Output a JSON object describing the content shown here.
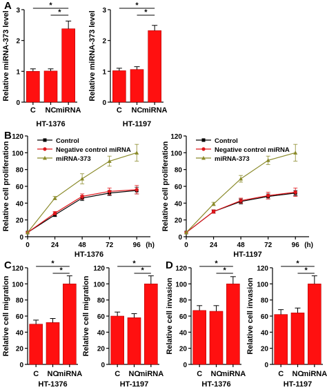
{
  "panel_letters": [
    "A",
    "B",
    "C",
    "D"
  ],
  "colors": {
    "bar": "#ff1010",
    "control": "#000000",
    "nc": "#e0161b",
    "mir": "#8a8a2a",
    "axis": "#000000"
  },
  "chart_data": [
    {
      "id": "A1",
      "type": "bar",
      "panel": "A",
      "categories": [
        "C",
        "NC",
        "miRNA"
      ],
      "values": [
        1.0,
        1.01,
        2.38
      ],
      "errors": [
        0.08,
        0.07,
        0.25
      ],
      "ylabel": "Relative miRNA-373 level",
      "xlabel": "HT-1376",
      "ylim": [
        0,
        3
      ],
      "yticks": [
        0,
        1,
        2,
        3
      ],
      "significance": [
        {
          "from": 0,
          "to": 2,
          "label": "*"
        },
        {
          "from": 1,
          "to": 2,
          "label": "*"
        }
      ]
    },
    {
      "id": "A2",
      "type": "bar",
      "panel": "A",
      "categories": [
        "C",
        "NC",
        "miRNA"
      ],
      "values": [
        1.02,
        1.06,
        2.32
      ],
      "errors": [
        0.08,
        0.09,
        0.17
      ],
      "ylabel": "Relative miRNA-373 level",
      "xlabel": "HT-1197",
      "ylim": [
        0,
        3
      ],
      "yticks": [
        0,
        1,
        2,
        3
      ],
      "significance": [
        {
          "from": 0,
          "to": 2,
          "label": "*"
        },
        {
          "from": 1,
          "to": 2,
          "label": "*"
        }
      ]
    },
    {
      "id": "B1",
      "type": "line",
      "panel": "B",
      "x": [
        0,
        24,
        48,
        72,
        96
      ],
      "xticks": [
        "0",
        "24",
        "48",
        "72",
        "96"
      ],
      "xunit": "(h)",
      "series": [
        {
          "name": "Control",
          "values": [
            5,
            26,
            46,
            52,
            55
          ],
          "errors": [
            0,
            2,
            3,
            3,
            4
          ]
        },
        {
          "name": "Negative control miRNA",
          "values": [
            5,
            28,
            48,
            54,
            56
          ],
          "errors": [
            0,
            2,
            3,
            4,
            5
          ]
        },
        {
          "name": "miRNA-373",
          "values": [
            5,
            46,
            69,
            90,
            100
          ],
          "errors": [
            0,
            2,
            6,
            6,
            10
          ]
        }
      ],
      "ylabel": "Relative cell proliferation",
      "xlabel": "HT-1376",
      "ylim": [
        0,
        120
      ],
      "yticks": [
        0,
        20,
        40,
        60,
        80,
        100,
        120
      ],
      "xlim": [
        0,
        108
      ],
      "legend": "top-left"
    },
    {
      "id": "B2",
      "type": "line",
      "panel": "B",
      "x": [
        0,
        24,
        48,
        72,
        96
      ],
      "xticks": [
        "0",
        "24",
        "48",
        "72",
        "96"
      ],
      "xunit": "(h)",
      "series": [
        {
          "name": "Control",
          "values": [
            5,
            30,
            42,
            48,
            52
          ],
          "errors": [
            0,
            2,
            3,
            3,
            3
          ]
        },
        {
          "name": "Negative control miRNA",
          "values": [
            5,
            30,
            43,
            49,
            53
          ],
          "errors": [
            0,
            2,
            3,
            4,
            5
          ]
        },
        {
          "name": "miRNA-373",
          "values": [
            5,
            39,
            69,
            91,
            100
          ],
          "errors": [
            0,
            2,
            4,
            5,
            10
          ]
        }
      ],
      "ylabel": "Relative cell proliferation",
      "xlabel": "HT-1197",
      "ylim": [
        0,
        120
      ],
      "yticks": [
        0,
        20,
        40,
        60,
        80,
        100,
        120
      ],
      "xlim": [
        0,
        108
      ],
      "legend": "top-left"
    },
    {
      "id": "C1",
      "type": "bar",
      "panel": "C",
      "categories": [
        "C",
        "NC",
        "miRNA"
      ],
      "values": [
        50,
        52,
        100
      ],
      "errors": [
        5,
        5,
        10
      ],
      "ylabel": "Relative cell migration",
      "xlabel": "HT-1376",
      "ylim": [
        0,
        120
      ],
      "yticks": [
        0,
        20,
        40,
        60,
        80,
        100,
        120
      ],
      "significance": [
        {
          "from": 0,
          "to": 2,
          "label": "*"
        },
        {
          "from": 1,
          "to": 2,
          "label": "*"
        }
      ]
    },
    {
      "id": "C2",
      "type": "bar",
      "panel": "C",
      "categories": [
        "C",
        "NC",
        "miRNA"
      ],
      "values": [
        60,
        58,
        100
      ],
      "errors": [
        5,
        5,
        10
      ],
      "ylabel": "Relative cell migration",
      "xlabel": "HT-1197",
      "ylim": [
        0,
        120
      ],
      "yticks": [
        0,
        20,
        40,
        60,
        80,
        100,
        120
      ],
      "significance": [
        {
          "from": 0,
          "to": 2,
          "label": "*"
        },
        {
          "from": 1,
          "to": 2,
          "label": "*"
        }
      ]
    },
    {
      "id": "D1",
      "type": "bar",
      "panel": "D",
      "categories": [
        "C",
        "NC",
        "miRNA"
      ],
      "values": [
        67,
        66,
        100
      ],
      "errors": [
        6,
        7,
        9
      ],
      "ylabel": "Relative cell invasion",
      "xlabel": "HT-1376",
      "ylim": [
        0,
        120
      ],
      "yticks": [
        0,
        20,
        40,
        60,
        80,
        100,
        120
      ],
      "significance": [
        {
          "from": 0,
          "to": 2,
          "label": "*"
        },
        {
          "from": 1,
          "to": 2,
          "label": "*"
        }
      ]
    },
    {
      "id": "D2",
      "type": "bar",
      "panel": "D",
      "categories": [
        "C",
        "NC",
        "miRNA"
      ],
      "values": [
        62,
        64,
        100
      ],
      "errors": [
        6,
        6,
        10
      ],
      "ylabel": "Relative cell invasion",
      "xlabel": "HT-1197",
      "ylim": [
        0,
        120
      ],
      "yticks": [
        0,
        20,
        40,
        60,
        80,
        100,
        120
      ],
      "significance": [
        {
          "from": 0,
          "to": 2,
          "label": "*"
        },
        {
          "from": 1,
          "to": 2,
          "label": "*"
        }
      ]
    }
  ]
}
